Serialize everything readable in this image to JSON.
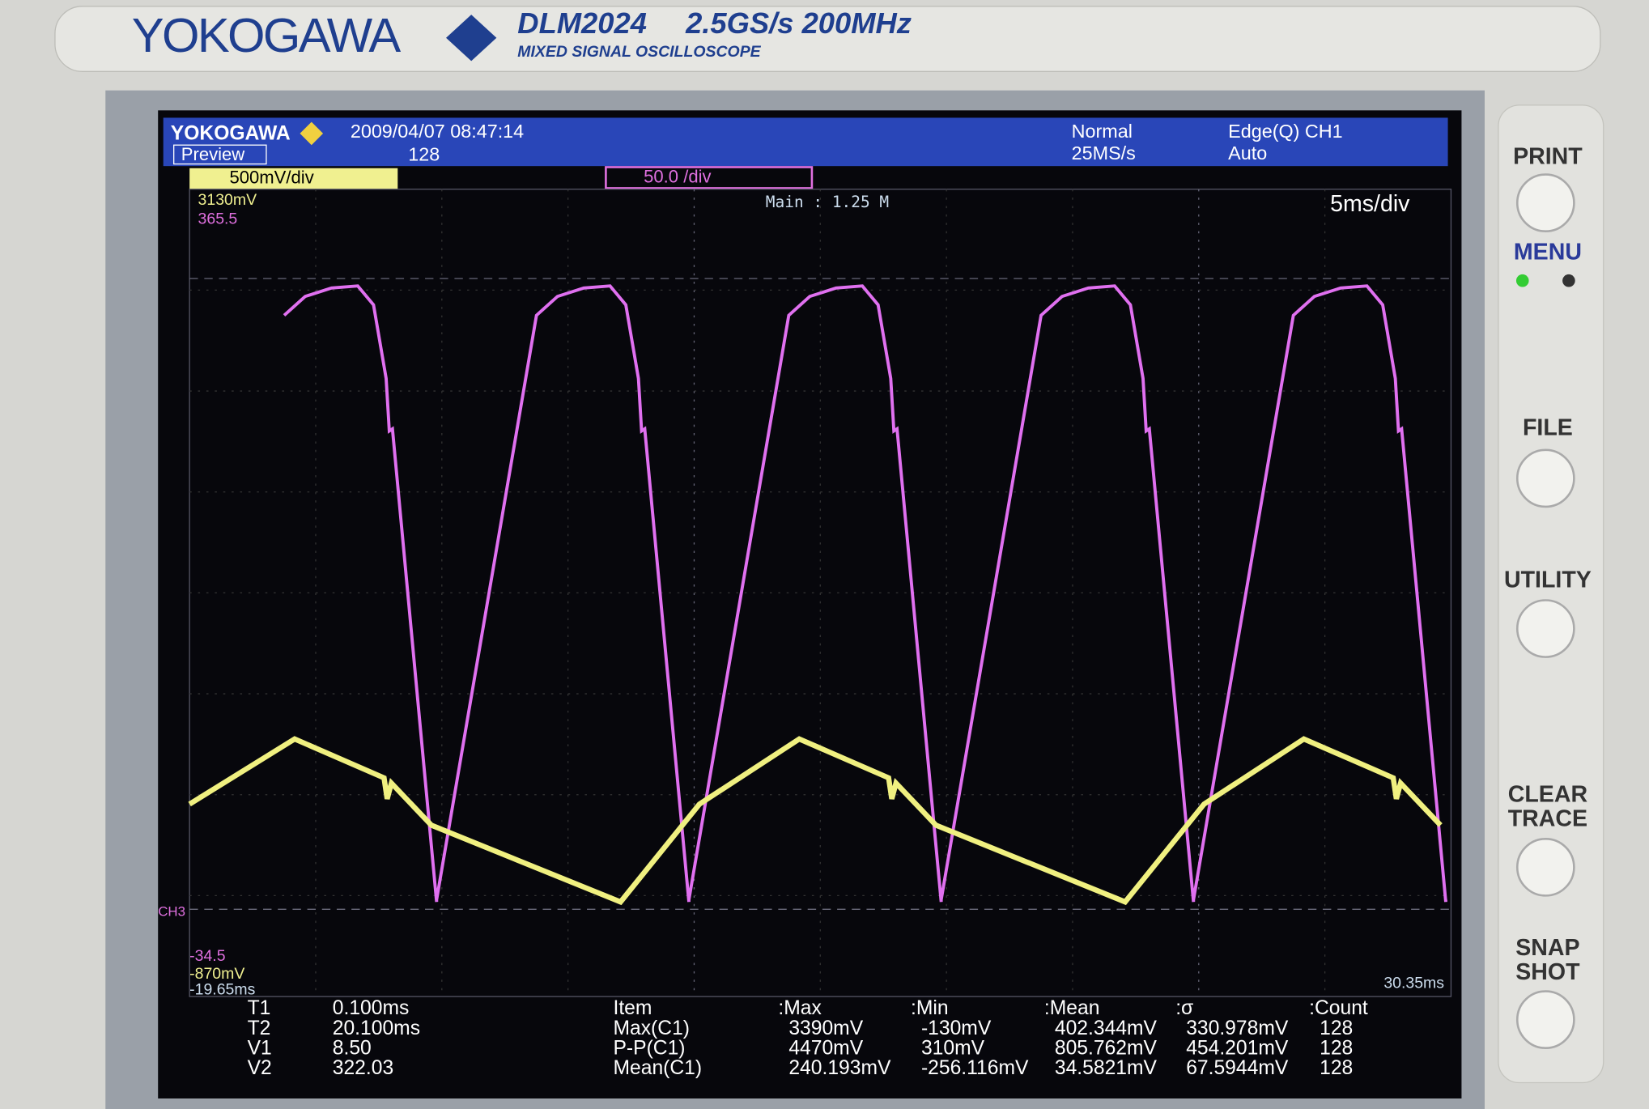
{
  "bezel": {
    "brand": "YOKOGAWA",
    "model": "DLM2024",
    "spec": "2.5GS/s 200MHz",
    "subtitle": "MIXED SIGNAL OSCILLOSCOPE"
  },
  "buttons": {
    "print": [
      "PRINT"
    ],
    "menu": [
      "MENU"
    ],
    "file": [
      "FILE"
    ],
    "utility": [
      "UTILITY"
    ],
    "clear_trace": [
      "CLEAR",
      "TRACE"
    ],
    "snap_shot": [
      "SNAP",
      "SHOT"
    ]
  },
  "screen": {
    "header": {
      "brand": "YOKOGAWA",
      "mode": "Preview",
      "datetime": "2009/04/07 08:47:14",
      "count": "128",
      "trigger_mode": "Normal",
      "sample_rate": "25MS/s",
      "trigger": "Edge(Q) CH1",
      "trigger_auto": "Auto"
    },
    "ch1_scale": "500mV/div",
    "ch3_scale": "50.0 /div",
    "main": "Main : 1.25 M",
    "timebase": "5ms/div",
    "top_left": [
      "3130mV",
      "365.5"
    ],
    "ch3_label": "CH3",
    "bottom_left": [
      "-34.5",
      "-870mV",
      "-19.65ms"
    ],
    "bottom_right": "30.35ms",
    "cursors": [
      [
        "T1",
        "0.100ms"
      ],
      [
        "T2",
        "20.100ms"
      ],
      [
        "V1",
        "8.50"
      ],
      [
        "V2",
        "322.03"
      ]
    ],
    "measure": {
      "header": [
        "Item",
        ":Max",
        ":Min",
        ":Mean",
        ":σ",
        ":Count"
      ],
      "rows": [
        [
          "Max(C1)",
          "3390mV",
          "-130mV",
          "402.344mV",
          "330.978mV",
          "128"
        ],
        [
          "P-P(C1)",
          "4470mV",
          "310mV",
          "805.762mV",
          "454.201mV",
          "128"
        ],
        [
          "Mean(C1)",
          "240.193mV",
          "-256.116mV",
          "34.5821mV",
          "67.5944mV",
          "128"
        ]
      ]
    }
  }
}
